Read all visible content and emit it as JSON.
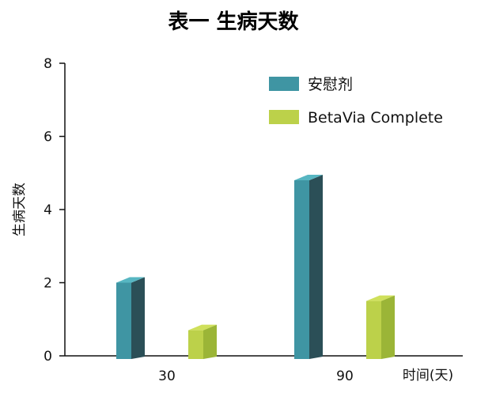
{
  "chart_data": {
    "type": "bar",
    "title": "表一 生病天数",
    "xlabel": "时间(天)",
    "ylabel": "生病天数",
    "categories": [
      "30",
      "90"
    ],
    "yticks": [
      "0",
      "2",
      "4",
      "6",
      "8"
    ],
    "ylim": [
      0,
      8
    ],
    "grid": false,
    "legend_position": "top-right",
    "series": [
      {
        "name": "安慰剂",
        "values": [
          2.0,
          4.8
        ],
        "color": "#3f95a3",
        "color_dark": "#2b4f57",
        "color_top": "#57b6c2"
      },
      {
        "name": "BetaVia Complete",
        "values": [
          0.7,
          1.5
        ],
        "color": "#bcd14a",
        "color_dark": "#9bb537",
        "color_top": "#cfe05b"
      }
    ]
  }
}
